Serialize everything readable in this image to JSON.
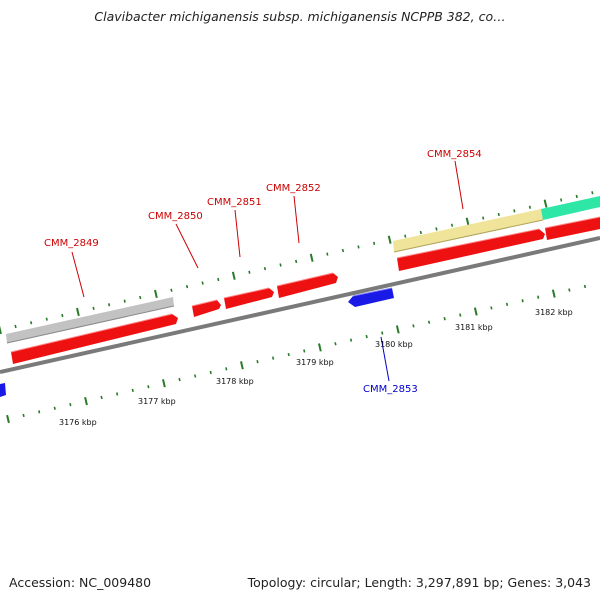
{
  "title": "Clavibacter michiganensis subsp. michiganensis NCPPB 382, co…",
  "footer": {
    "accession": "Accession: NC_009480",
    "summary": "Topology: circular; Length: 3,297,891 bp; Genes: 3,043"
  },
  "colors": {
    "cds_forward": "#ee1111",
    "cds_reverse": "#1a1ae6",
    "feature_gray": "#c2c2c2",
    "feature_yellow": "#efe49a",
    "feature_teal": "#2ee6a6",
    "backbone": "#7a7a7a",
    "tick": "#2a7a2a",
    "label_red": "#cc0000",
    "label_blue": "#0000cc"
  },
  "tick_labels": [
    "3176 kbp",
    "3177 kbp",
    "3178 kbp",
    "3179 kbp",
    "3180 kbp",
    "3181 kbp",
    "3182 kbp"
  ],
  "genes": [
    {
      "name": "CMM_2849",
      "strand": "forward"
    },
    {
      "name": "CMM_2850",
      "strand": "forward"
    },
    {
      "name": "CMM_2851",
      "strand": "forward"
    },
    {
      "name": "CMM_2852",
      "strand": "forward"
    },
    {
      "name": "CMM_2853",
      "strand": "reverse"
    },
    {
      "name": "CMM_2854",
      "strand": "forward"
    }
  ]
}
